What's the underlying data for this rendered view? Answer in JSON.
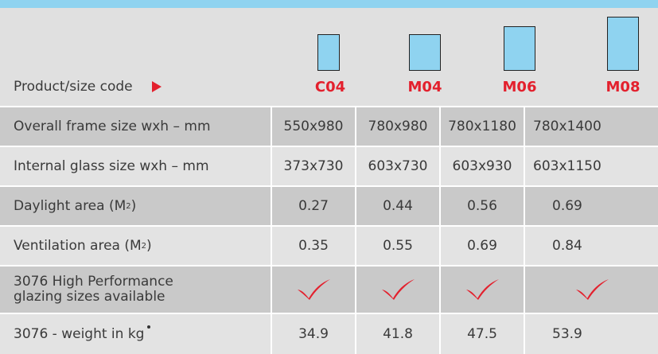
{
  "header": {
    "product_label": "Product/size code",
    "codes": [
      "C04",
      "M04",
      "M06",
      "M08"
    ],
    "accent_color": "#e3202d",
    "window_color": "#8fd3f0"
  },
  "rows": [
    {
      "label": "Overall frame size wxh – mm",
      "values": [
        "550x980",
        "780x980",
        "780x1180",
        "780x1400"
      ]
    },
    {
      "label": "Internal glass size wxh – mm",
      "values": [
        "373x730",
        "603x730",
        "603x930",
        "603x1150"
      ]
    },
    {
      "label": "Daylight area (M",
      "label_sup": "2",
      "label_tail": ")",
      "values": [
        "0.27",
        "0.44",
        "0.56",
        "0.69"
      ]
    },
    {
      "label": "Ventilation area (M",
      "label_sup": "2",
      "label_tail": ")",
      "values": [
        "0.35",
        "0.55",
        "0.69",
        "0.84"
      ]
    },
    {
      "label_line1": "3076 High Performance",
      "label_line2": "glazing sizes available",
      "values": [
        "tick",
        "tick",
        "tick",
        "tick"
      ],
      "icon": "checkmark-icon"
    },
    {
      "label": "3076 - weight in kg",
      "values": [
        "34.9",
        "41.8",
        "47.5",
        "53.9"
      ]
    }
  ]
}
